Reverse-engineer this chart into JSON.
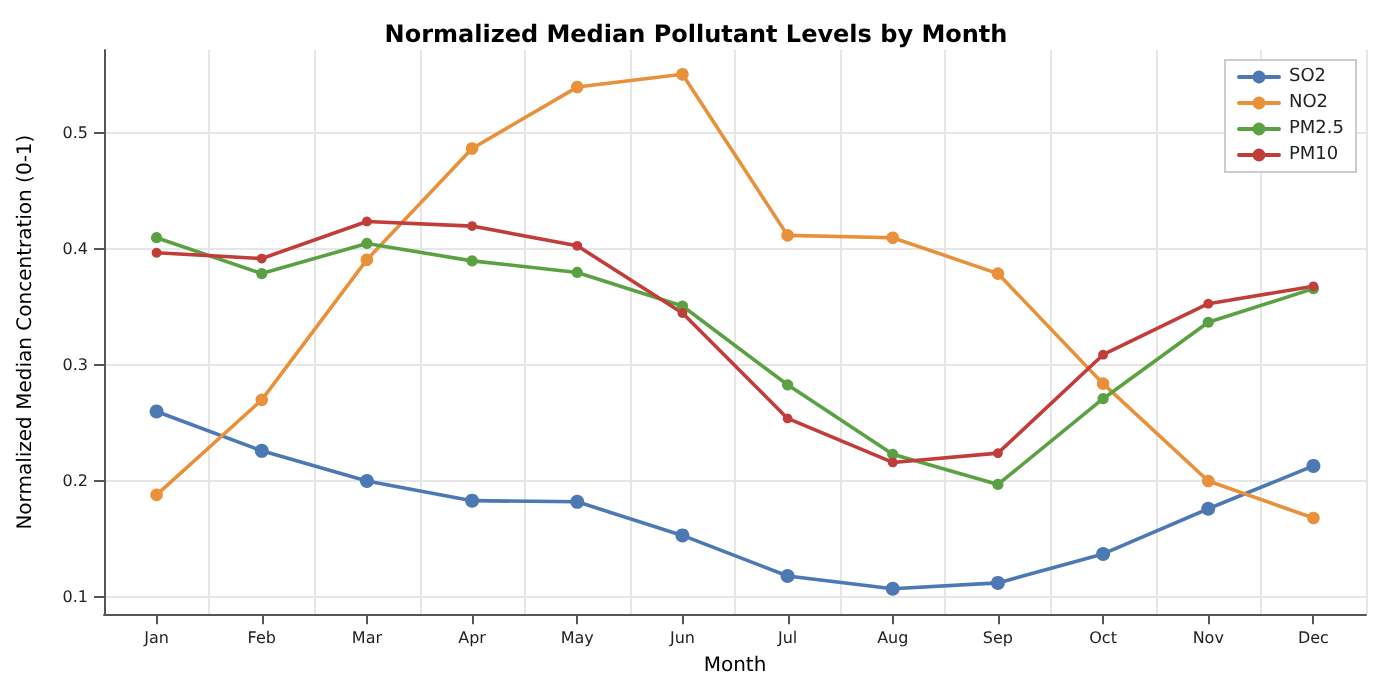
{
  "chart_data": {
    "type": "line",
    "title": "Normalized Median Pollutant Levels by Month",
    "xlabel": "Month",
    "ylabel": "Normalized Median Concentration (0-1)",
    "categories": [
      "Jan",
      "Feb",
      "Mar",
      "Apr",
      "May",
      "Jun",
      "Jul",
      "Aug",
      "Sep",
      "Oct",
      "Nov",
      "Dec"
    ],
    "series": [
      {
        "name": "SO2",
        "color": "#4c78b4",
        "values": [
          0.26,
          0.226,
          0.2,
          0.183,
          0.182,
          0.153,
          0.118,
          0.107,
          0.112,
          0.137,
          0.176,
          0.213
        ]
      },
      {
        "name": "NO2",
        "color": "#e8913a",
        "values": [
          0.188,
          0.27,
          0.391,
          0.487,
          0.54,
          0.551,
          0.412,
          0.41,
          0.379,
          0.284,
          0.2,
          0.168
        ]
      },
      {
        "name": "PM2.5",
        "color": "#5ba143",
        "values": [
          0.41,
          0.379,
          0.405,
          0.39,
          0.38,
          0.351,
          0.283,
          0.223,
          0.197,
          0.271,
          0.337,
          0.366
        ]
      },
      {
        "name": "PM10",
        "color": "#c03d3a",
        "values": [
          0.397,
          0.392,
          0.424,
          0.42,
          0.403,
          0.345,
          0.254,
          0.216,
          0.224,
          0.309,
          0.353,
          0.368
        ]
      }
    ],
    "ylim": [
      0.085,
      0.572
    ],
    "yticks": [
      0.1,
      0.2,
      0.3,
      0.4,
      0.5
    ],
    "grid": true,
    "legend": "top right",
    "marker": "circle",
    "line_style": "solid"
  }
}
